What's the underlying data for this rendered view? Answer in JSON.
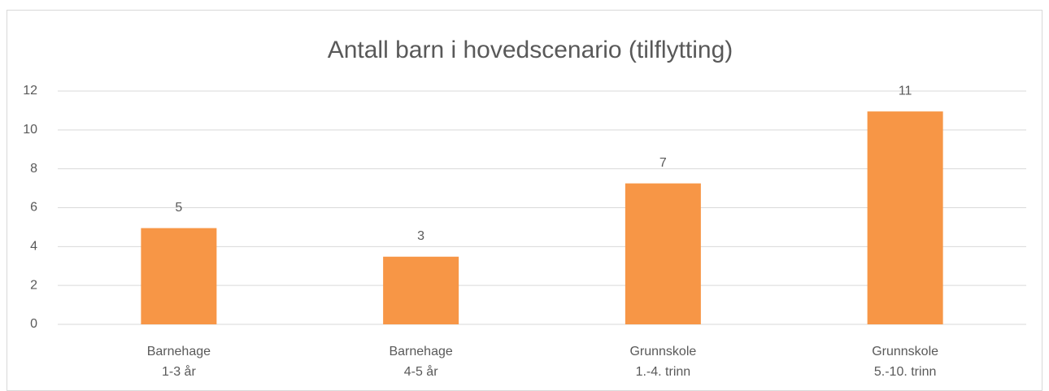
{
  "chart_data": {
    "type": "bar",
    "title": "Antall barn i hovedscenario (tilflytting)",
    "categories": [
      [
        "Barnehage",
        "1-3 år"
      ],
      [
        "Barnehage",
        "4-5 år"
      ],
      [
        "Grunnskole",
        "1.-4. trinn"
      ],
      [
        "Grunnskole",
        "5.-10. trinn"
      ]
    ],
    "values": [
      4.95,
      3.48,
      7.25,
      10.95
    ],
    "value_labels": [
      "5",
      "3",
      "7",
      "11"
    ],
    "color": "#f79646",
    "ylim": [
      0,
      12
    ],
    "yticks": [
      0,
      2,
      4,
      6,
      8,
      10,
      12
    ],
    "grid": true
  }
}
